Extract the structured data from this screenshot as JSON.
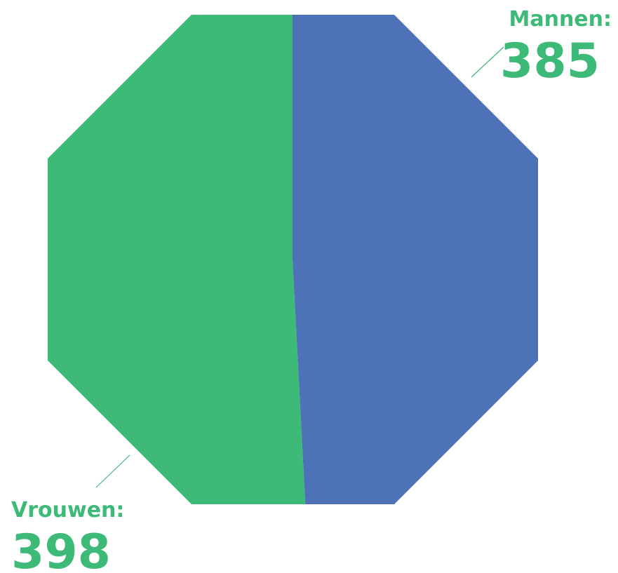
{
  "chart_data": {
    "type": "pie",
    "shape": "octagon",
    "series": [
      {
        "name": "Mannen:",
        "value": 385,
        "color": "#4d72b8"
      },
      {
        "name": "Vrouwen:",
        "value": 398,
        "color": "#3dba78"
      }
    ],
    "label_color": "#3dba78"
  }
}
